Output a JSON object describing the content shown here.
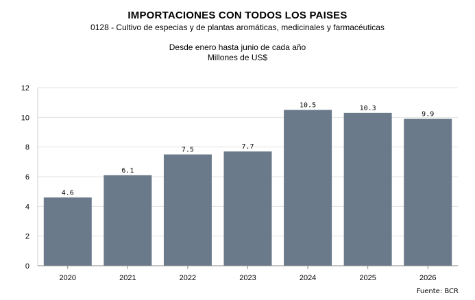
{
  "header": {
    "title": "IMPORTACIONES CON TODOS LOS PAISES",
    "subtitle": "0128 - Cultivo de especias y de plantas aromáticas, medicinales y farmacéuticas",
    "period": "Desde enero hasta junio de cada año",
    "units": "Millones de US$"
  },
  "source": "Fuente: BCR",
  "chart_data": {
    "type": "bar",
    "categories": [
      "2020",
      "2021",
      "2022",
      "2023",
      "2024",
      "2025",
      "2026"
    ],
    "values": [
      4.6,
      6.1,
      7.5,
      7.7,
      10.5,
      10.3,
      9.9
    ],
    "data_labels": [
      "4.6",
      "6.1",
      "7.5",
      "7.7",
      "10.5",
      "10.3",
      "9.9"
    ],
    "ylim": [
      0,
      12
    ],
    "yticks": [
      0,
      2,
      4,
      6,
      8,
      10,
      12
    ],
    "grid": true,
    "legend": "none",
    "bar_color": "#6b7a8a"
  }
}
